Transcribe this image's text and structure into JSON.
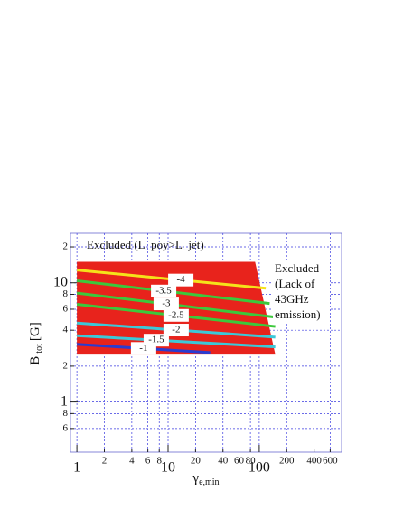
{
  "chart_data": {
    "type": "contour",
    "xlabel": {
      "main": "γ",
      "sub": "e,min"
    },
    "ylabel": {
      "main": "B",
      "sub": "tot",
      "unit": "[G]"
    },
    "xscale": "log",
    "yscale": "log",
    "xlim": [
      0.85,
      800
    ],
    "ylim": [
      0.38,
      26
    ],
    "xticks": [
      1,
      2,
      4,
      6,
      8,
      10,
      20,
      40,
      60,
      80,
      100,
      200,
      400,
      600
    ],
    "yticks": [
      {
        "value": 0.6,
        "label": "6"
      },
      {
        "value": 0.8,
        "label": "8"
      },
      1,
      2,
      4,
      6,
      8,
      10,
      {
        "value": 20,
        "label": "2"
      }
    ],
    "grid": true,
    "region": {
      "color": "#e8231c",
      "x": [
        1,
        90,
        150,
        1
      ],
      "y": [
        15,
        15,
        2.5,
        2.5
      ]
    },
    "series": [
      {
        "name": "-4",
        "color": "#f5e21a",
        "x": [
          1,
          118
        ],
        "y": [
          12.8,
          9.0
        ]
      },
      {
        "name": "-3.5",
        "color": "#3cc83c",
        "x": [
          1,
          130
        ],
        "y": [
          10.4,
          6.7
        ]
      },
      {
        "name": "-3",
        "color": "#3cc83c",
        "x": [
          1,
          150
        ],
        "y": [
          8.2,
          5.15
        ]
      },
      {
        "name": "-2.5",
        "color": "#3cc83c",
        "x": [
          1,
          150
        ],
        "y": [
          6.6,
          4.3
        ]
      },
      {
        "name": "-2",
        "color": "#3cc8d8",
        "x": [
          1,
          150
        ],
        "y": [
          4.6,
          3.5
        ]
      },
      {
        "name": "-1.5",
        "color": "#3cc8d8",
        "x": [
          1,
          150
        ],
        "y": [
          3.6,
          2.9
        ]
      },
      {
        "name": "-1",
        "color": "#2a3cd0",
        "x": [
          1,
          29
        ],
        "y": [
          3.05,
          2.6
        ]
      }
    ],
    "annotations": [
      {
        "lines": [
          "Excluded (L_poy>L_jet)"
        ]
      },
      {
        "lines": [
          "Excluded",
          "(Lack of",
          "43GHz",
          "emission)"
        ]
      }
    ]
  }
}
